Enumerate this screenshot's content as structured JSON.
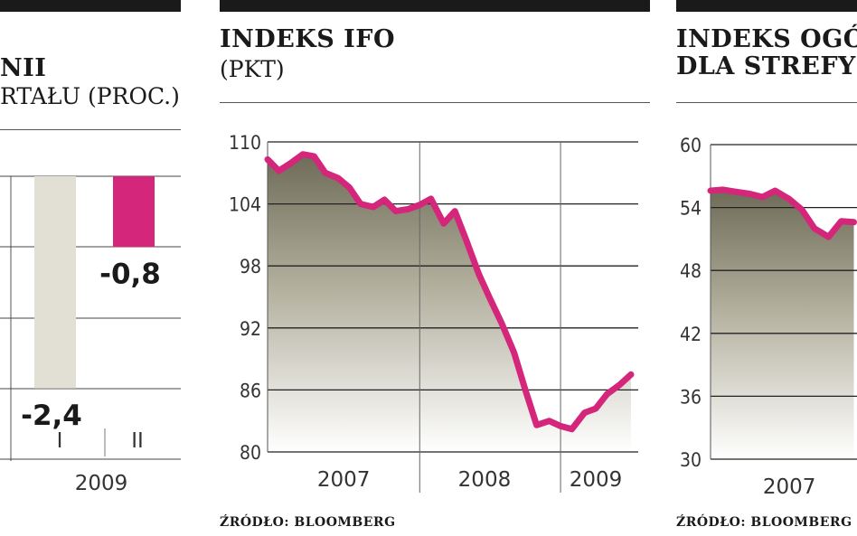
{
  "panels": {
    "left": {
      "title_part1": "NII",
      "title_part2": "RTAŁU (PROC.)"
    },
    "middle": {
      "title": "INDEKS IFO",
      "subtitle": "(PKT)",
      "source": "ŹRÓDŁO: BLOOMBERG"
    },
    "right": {
      "title_line1": "INDEKS OGÓ",
      "title_line2": "DLA STREFY",
      "source": "ŹRÓDŁO: BLOOMBERG"
    }
  },
  "colors": {
    "magenta": "#d4267a",
    "beige": "#e2e0d4",
    "dark": "#1a1a1a",
    "area_top": "#7a7766"
  },
  "chart_data": [
    {
      "type": "bar",
      "categories": [
        "I",
        "II"
      ],
      "year_label": "2009",
      "series": [
        {
          "values": [
            -2.4,
            -0.8
          ]
        }
      ],
      "value_labels": [
        "-2,4",
        "-0,8"
      ],
      "bar_colors": [
        "#e2e0d4",
        "#d4267a"
      ],
      "ylim": [
        -3.2,
        0
      ]
    },
    {
      "type": "area",
      "title": "INDEKS IFO",
      "ylabel": "(PKT)",
      "yticks": [
        "110",
        "104",
        "98",
        "92",
        "86",
        "80"
      ],
      "ytick_values": [
        110,
        104,
        98,
        92,
        86,
        80
      ],
      "ylim": [
        80,
        110
      ],
      "xlabels": [
        "2007",
        "2008",
        "2009"
      ],
      "xlim": [
        2006.92,
        2009.55
      ],
      "x": [
        2006.92,
        2007.0,
        2007.08,
        2007.17,
        2007.25,
        2007.33,
        2007.42,
        2007.5,
        2007.58,
        2007.67,
        2007.75,
        2007.83,
        2007.92,
        2008.0,
        2008.08,
        2008.17,
        2008.25,
        2008.33,
        2008.42,
        2008.5,
        2008.58,
        2008.67,
        2008.75,
        2008.83,
        2008.92,
        2009.0,
        2009.08,
        2009.17,
        2009.25,
        2009.33,
        2009.42,
        2009.5
      ],
      "y": [
        108.3,
        107.2,
        107.9,
        108.8,
        108.6,
        107.0,
        106.5,
        105.6,
        104.0,
        103.7,
        104.4,
        103.3,
        103.5,
        103.9,
        104.5,
        102.1,
        103.3,
        100.5,
        97.2,
        94.8,
        92.5,
        89.6,
        86.0,
        82.6,
        83.0,
        82.5,
        82.2,
        83.8,
        84.2,
        85.6,
        86.5,
        87.5
      ],
      "source": "ŹRÓDŁO: BLOOMBERG"
    },
    {
      "type": "area",
      "title": "INDEKS OGÓ",
      "ylabel": "DLA STREFY",
      "yticks": [
        "60",
        "54",
        "48",
        "42",
        "36",
        "30"
      ],
      "ytick_values": [
        60,
        54,
        48,
        42,
        36,
        30
      ],
      "ylim": [
        30,
        60
      ],
      "xlabels": [
        "2007"
      ],
      "x": [
        2006.92,
        2007.0,
        2007.08,
        2007.17,
        2007.25,
        2007.33,
        2007.42,
        2007.5,
        2007.58,
        2007.67,
        2007.75,
        2007.83
      ],
      "y": [
        55.6,
        55.7,
        55.5,
        55.3,
        55.0,
        55.6,
        54.8,
        53.8,
        52.0,
        51.2,
        52.7,
        52.6
      ],
      "source": "ŹRÓDŁO: BLOOMBERG"
    }
  ]
}
